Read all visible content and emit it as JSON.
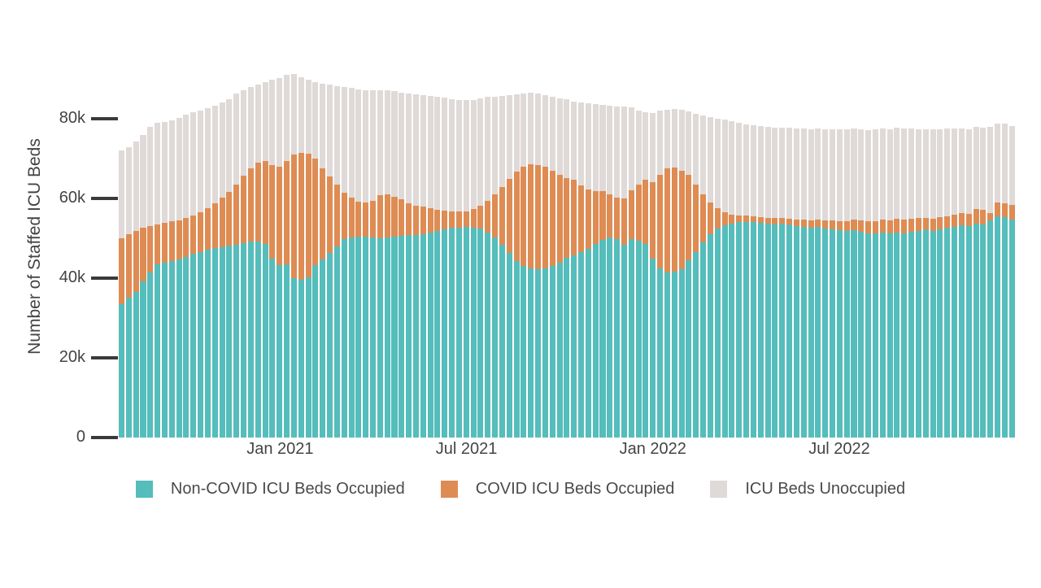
{
  "figure": {
    "y_axis_title": "Number of Staffed ICU Beds",
    "y_ticks": [
      {
        "value": 0,
        "label": "0"
      },
      {
        "value": 20000,
        "label": "20k"
      },
      {
        "value": 40000,
        "label": "40k"
      },
      {
        "value": 60000,
        "label": "60k"
      },
      {
        "value": 80000,
        "label": "80k"
      }
    ],
    "x_ticks": [
      {
        "week_index": 22,
        "label": "Jan 2021"
      },
      {
        "week_index": 48,
        "label": "Jul 2021"
      },
      {
        "week_index": 74,
        "label": "Jan 2022"
      },
      {
        "week_index": 100,
        "label": "Jul 2022"
      }
    ]
  },
  "legend": {
    "items": [
      {
        "key": "non_covid",
        "label": "Non-COVID ICU Beds Occupied",
        "color": "#55BDBB"
      },
      {
        "key": "covid",
        "label": "COVID ICU Beds Occupied",
        "color": "#DE8C53"
      },
      {
        "key": "unoccupied",
        "label": "ICU Beds Unoccupied",
        "color": "#DFDAD7"
      }
    ]
  },
  "colors": {
    "non_covid": "#55BDBB",
    "covid": "#DE8C53",
    "unoccupied": "#DFDAD7",
    "axis_text": "#444444",
    "tick_mark": "#3A3A3A",
    "background": "#FFFFFF"
  },
  "chart_data": {
    "type": "bar",
    "stacked": true,
    "title": "",
    "xlabel": "",
    "ylabel": "Number of Staffed ICU Beds",
    "ylim": [
      0,
      97000
    ],
    "grid": false,
    "legend_position": "bottom",
    "x_frequency": "weekly",
    "x": [
      "2020-07-31",
      "2020-08-07",
      "2020-08-14",
      "2020-08-21",
      "2020-08-28",
      "2020-09-04",
      "2020-09-11",
      "2020-09-18",
      "2020-09-25",
      "2020-10-02",
      "2020-10-09",
      "2020-10-16",
      "2020-10-23",
      "2020-10-30",
      "2020-11-06",
      "2020-11-13",
      "2020-11-20",
      "2020-11-27",
      "2020-12-04",
      "2020-12-11",
      "2020-12-18",
      "2020-12-25",
      "2021-01-01",
      "2021-01-08",
      "2021-01-15",
      "2021-01-22",
      "2021-01-29",
      "2021-02-05",
      "2021-02-12",
      "2021-02-19",
      "2021-02-26",
      "2021-03-05",
      "2021-03-12",
      "2021-03-19",
      "2021-03-26",
      "2021-04-02",
      "2021-04-09",
      "2021-04-16",
      "2021-04-23",
      "2021-04-30",
      "2021-05-07",
      "2021-05-14",
      "2021-05-21",
      "2021-05-28",
      "2021-06-04",
      "2021-06-11",
      "2021-06-18",
      "2021-06-25",
      "2021-07-02",
      "2021-07-09",
      "2021-07-16",
      "2021-07-23",
      "2021-07-30",
      "2021-08-06",
      "2021-08-13",
      "2021-08-20",
      "2021-08-27",
      "2021-09-03",
      "2021-09-10",
      "2021-09-17",
      "2021-09-24",
      "2021-10-01",
      "2021-10-08",
      "2021-10-15",
      "2021-10-22",
      "2021-10-29",
      "2021-11-05",
      "2021-11-12",
      "2021-11-19",
      "2021-11-26",
      "2021-12-03",
      "2021-12-10",
      "2021-12-17",
      "2021-12-24",
      "2021-12-31",
      "2022-01-07",
      "2022-01-14",
      "2022-01-21",
      "2022-01-28",
      "2022-02-04",
      "2022-02-11",
      "2022-02-18",
      "2022-02-25",
      "2022-03-04",
      "2022-03-11",
      "2022-03-18",
      "2022-03-25",
      "2022-04-01",
      "2022-04-08",
      "2022-04-15",
      "2022-04-22",
      "2022-04-29",
      "2022-05-06",
      "2022-05-13",
      "2022-05-20",
      "2022-05-27",
      "2022-06-03",
      "2022-06-10",
      "2022-06-17",
      "2022-06-24",
      "2022-07-01",
      "2022-07-08",
      "2022-07-15",
      "2022-07-22",
      "2022-07-29",
      "2022-08-05",
      "2022-08-12",
      "2022-08-19",
      "2022-08-26",
      "2022-09-02",
      "2022-09-09",
      "2022-09-16",
      "2022-09-23",
      "2022-09-30",
      "2022-10-07",
      "2022-10-14",
      "2022-10-21",
      "2022-10-28",
      "2022-11-04",
      "2022-11-11",
      "2022-11-18",
      "2022-11-25",
      "2022-12-02",
      "2022-12-09",
      "2022-12-16"
    ],
    "series": [
      {
        "key": "non_covid",
        "name": "Non-COVID ICU Beds Occupied",
        "color": "#55BDBB",
        "values": [
          33500,
          35200,
          36500,
          39300,
          41500,
          43500,
          43900,
          44300,
          44800,
          45400,
          46100,
          46600,
          47100,
          47500,
          47800,
          48100,
          48500,
          48900,
          49200,
          49300,
          48600,
          45000,
          43200,
          43600,
          40000,
          39600,
          40300,
          43300,
          44700,
          46300,
          48000,
          49900,
          50200,
          50400,
          50500,
          50300,
          50000,
          50200,
          50500,
          50700,
          50800,
          50900,
          51000,
          51400,
          51900,
          52300,
          52600,
          52700,
          52800,
          52700,
          52400,
          51500,
          50200,
          48400,
          46300,
          44400,
          43100,
          42400,
          42200,
          42400,
          43000,
          44000,
          45100,
          45700,
          46500,
          47300,
          48700,
          49700,
          50300,
          49800,
          48300,
          49900,
          49400,
          48600,
          44900,
          42500,
          41400,
          41600,
          42300,
          44600,
          46600,
          49100,
          51100,
          52500,
          53400,
          53800,
          54100,
          54200,
          54200,
          54000,
          53800,
          53600,
          53800,
          53500,
          53200,
          52900,
          52600,
          52800,
          52500,
          52300,
          52000,
          51800,
          52000,
          51600,
          51300,
          51200,
          51400,
          51200,
          51500,
          51300,
          51600,
          51900,
          52200,
          51900,
          52300,
          52600,
          52900,
          53400,
          53200,
          53800,
          53600,
          54600,
          55600,
          55400,
          54700
        ]
      },
      {
        "key": "covid",
        "name": "COVID ICU Beds Occupied",
        "color": "#DE8C53",
        "values": [
          16600,
          15800,
          15300,
          13300,
          11600,
          10000,
          10100,
          10100,
          9800,
          9700,
          9700,
          9900,
          10400,
          11400,
          12400,
          13600,
          15100,
          16800,
          18500,
          19700,
          20900,
          23500,
          24800,
          25900,
          31000,
          31900,
          31000,
          26700,
          22800,
          19200,
          15500,
          11600,
          10100,
          8900,
          8500,
          9200,
          10800,
          10800,
          10000,
          9100,
          8100,
          7400,
          6900,
          6100,
          5300,
          4600,
          4100,
          4000,
          4000,
          4600,
          5800,
          8000,
          10800,
          14600,
          18700,
          22400,
          24900,
          26200,
          26300,
          25600,
          24000,
          22000,
          20100,
          19000,
          16800,
          15000,
          13200,
          12200,
          10700,
          10500,
          11700,
          12100,
          14100,
          16200,
          19300,
          23500,
          26100,
          26200,
          24700,
          21400,
          16900,
          11900,
          7900,
          5000,
          3100,
          2200,
          1700,
          1500,
          1400,
          1400,
          1400,
          1500,
          1400,
          1500,
          1600,
          1800,
          2000,
          1900,
          2100,
          2200,
          2400,
          2600,
          2700,
          2900,
          3100,
          3200,
          3300,
          3400,
          3500,
          3400,
          3300,
          3200,
          3000,
          3100,
          3000,
          2900,
          3000,
          3000,
          3000,
          3500,
          3500,
          1800,
          3500,
          3500,
          3800
        ]
      },
      {
        "key": "unoccupied",
        "name": "ICU Beds Unoccupied",
        "color": "#DFDAD7",
        "values": [
          21900,
          22000,
          22500,
          23400,
          24900,
          25500,
          25300,
          25200,
          25700,
          25900,
          25800,
          25700,
          25200,
          24400,
          24000,
          23300,
          22700,
          21600,
          20300,
          19600,
          19700,
          21300,
          22300,
          21500,
          20300,
          19000,
          18500,
          19300,
          21300,
          23100,
          24800,
          26500,
          27500,
          28200,
          28300,
          27700,
          26500,
          26200,
          26400,
          26800,
          27400,
          27800,
          28000,
          28300,
          28400,
          28400,
          28300,
          28100,
          27900,
          27500,
          27000,
          26000,
          24600,
          22700,
          21000,
          19400,
          18400,
          17900,
          17800,
          18000,
          18600,
          19200,
          19700,
          19600,
          20800,
          21600,
          21800,
          21600,
          22300,
          22900,
          23100,
          21000,
          18500,
          16800,
          17200,
          16000,
          14900,
          14700,
          15300,
          15800,
          17800,
          19900,
          21500,
          22600,
          23300,
          23400,
          23200,
          23000,
          22800,
          22800,
          22800,
          22800,
          22700,
          22800,
          22900,
          22900,
          22900,
          22900,
          22900,
          22900,
          23000,
          23100,
          22900,
          22900,
          22900,
          23000,
          22900,
          22900,
          22900,
          23000,
          22700,
          22400,
          22300,
          22400,
          22200,
          22100,
          21800,
          21200,
          21300,
          20700,
          20800,
          21600,
          19700,
          19900,
          19800
        ]
      }
    ]
  }
}
